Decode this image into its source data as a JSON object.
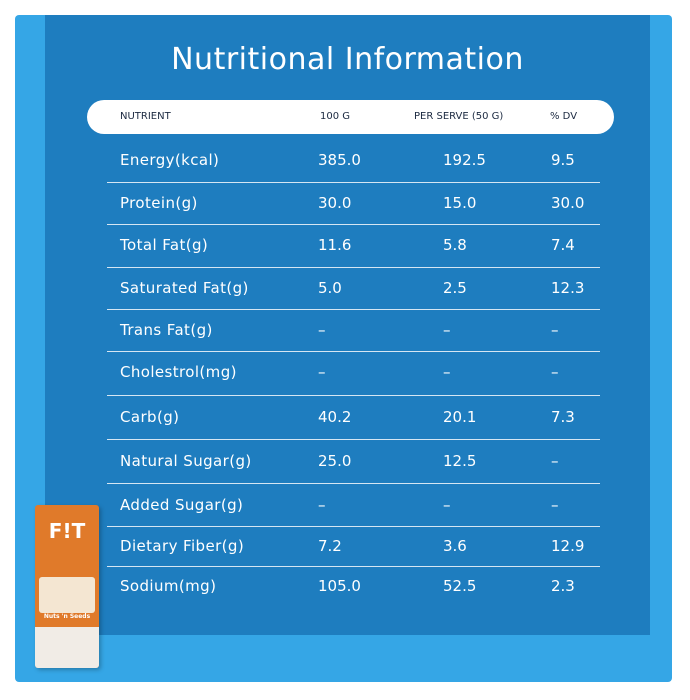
{
  "title": "Nutritional Information",
  "table": {
    "header": [
      "NUTRIENT",
      "100 G",
      "PER SERVE (50 G)",
      "% DV"
    ],
    "rows": [
      [
        "Energy(kcal)",
        "385.0",
        "192.5",
        "9.5"
      ],
      [
        "Protein(g)",
        "30.0",
        "15.0",
        "30.0"
      ],
      [
        "Total Fat(g)",
        "11.6",
        "5.8",
        "7.4"
      ],
      [
        "Saturated Fat(g)",
        "5.0",
        "2.5",
        "12.3"
      ],
      [
        "Trans Fat(g)",
        "–",
        "–",
        "–"
      ],
      [
        "Cholestrol(mg)",
        "–",
        "–",
        "–"
      ],
      [
        "Carb(g)",
        "40.2",
        "20.1",
        "7.3"
      ],
      [
        "Natural Sugar(g)",
        "25.0",
        "12.5",
        "–"
      ],
      [
        "Added Sugar(g)",
        "–",
        "–",
        "–"
      ],
      [
        "Dietary Fiber(g)",
        "7.2",
        "3.6",
        "12.9"
      ],
      [
        "Sodium(mg)",
        "105.0",
        "52.5",
        "2.3"
      ]
    ]
  },
  "product": {
    "brand": "F!T",
    "variant": "Nuts 'n Seeds"
  }
}
